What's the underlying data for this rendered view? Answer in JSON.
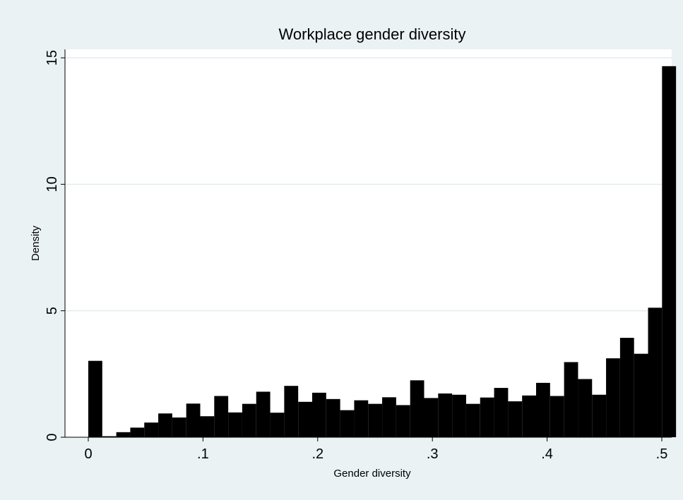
{
  "chart_data": {
    "type": "bar",
    "title": "Workplace gender diversity",
    "xlabel": "Gender diversity",
    "ylabel": "Density",
    "xlim": [
      0,
      0.5
    ],
    "ylim": [
      0,
      15
    ],
    "x_ticks": [
      {
        "value": 0,
        "label": "0"
      },
      {
        "value": 0.1,
        "label": ".1"
      },
      {
        "value": 0.2,
        "label": ".2"
      },
      {
        "value": 0.3,
        "label": ".3"
      },
      {
        "value": 0.4,
        "label": ".4"
      },
      {
        "value": 0.5,
        "label": ".5"
      }
    ],
    "y_ticks": [
      {
        "value": 0,
        "label": "0"
      },
      {
        "value": 5,
        "label": "5"
      },
      {
        "value": 10,
        "label": "10"
      },
      {
        "value": 15,
        "label": "15"
      }
    ],
    "grid": true,
    "bin_width": 0.0122,
    "bins_start": 0,
    "values": [
      3.02,
      0.04,
      0.2,
      0.38,
      0.58,
      0.94,
      0.78,
      1.33,
      0.83,
      1.63,
      0.98,
      1.32,
      1.8,
      0.97,
      2.03,
      1.4,
      1.76,
      1.51,
      1.07,
      1.46,
      1.32,
      1.58,
      1.27,
      2.25,
      1.55,
      1.73,
      1.68,
      1.32,
      1.57,
      1.95,
      1.42,
      1.65,
      2.15,
      1.63,
      2.97,
      2.3,
      1.68,
      3.12,
      3.93,
      3.3,
      5.12,
      14.67
    ],
    "colors": {
      "background": "#eaf2f3",
      "plot_area": "#ffffff",
      "bars": "#000000",
      "gridlines": "#e2ecee"
    }
  }
}
